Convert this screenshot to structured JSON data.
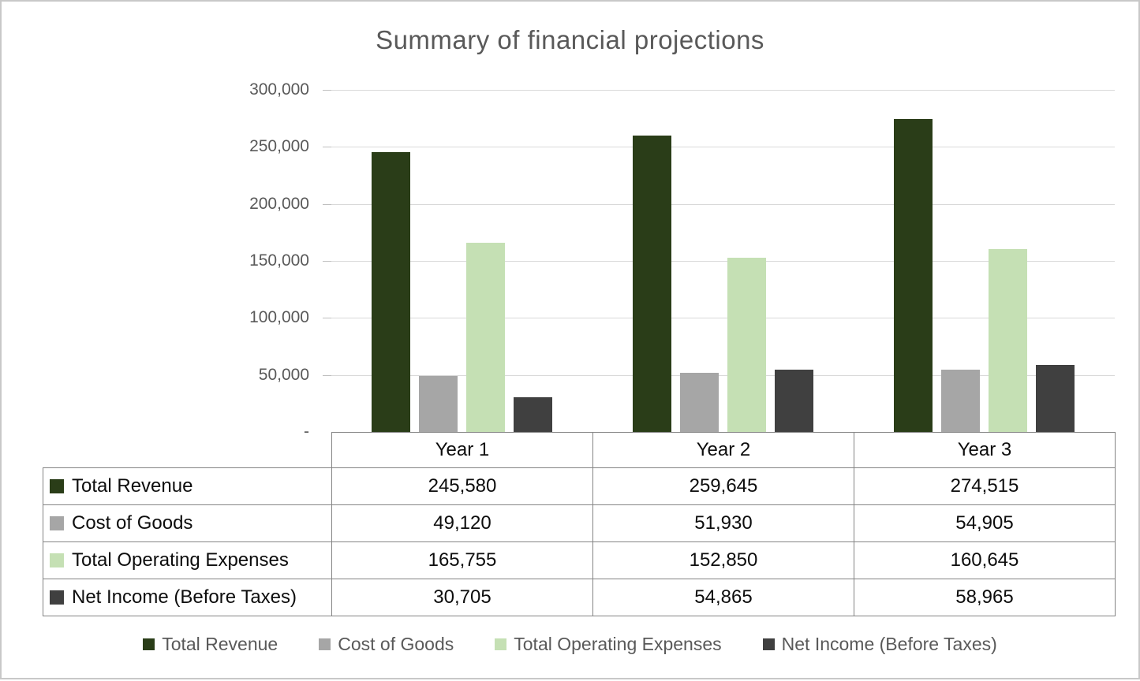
{
  "title": "Summary of financial projections",
  "colors": {
    "total_revenue": "#2a3d18",
    "cost_of_goods": "#a6a6a6",
    "total_operating_expenses": "#c5e0b4",
    "net_income": "#404040",
    "title_text": "#595959",
    "axis_text": "#595959",
    "gridline": "#d9d9d9",
    "table_border": "#848484"
  },
  "y_axis": {
    "tick_labels": [
      "300,000",
      "250,000",
      "200,000",
      "150,000",
      "100,000",
      "50,000",
      "-"
    ]
  },
  "chart_data": {
    "type": "bar",
    "title": "Summary of financial projections",
    "categories": [
      "Year 1",
      "Year 2",
      "Year 3"
    ],
    "series": [
      {
        "name": "Total Revenue",
        "color": "#2a3d18",
        "values": [
          245580,
          259645,
          274515
        ],
        "values_fmt": [
          "245,580",
          "259,645",
          "274,515"
        ]
      },
      {
        "name": "Cost of Goods",
        "color": "#a6a6a6",
        "values": [
          49120,
          51930,
          54905
        ],
        "values_fmt": [
          "49,120",
          "51,930",
          "54,905"
        ]
      },
      {
        "name": "Total Operating Expenses",
        "color": "#c5e0b4",
        "values": [
          165755,
          152850,
          160645
        ],
        "values_fmt": [
          "165,755",
          "152,850",
          "160,645"
        ]
      },
      {
        "name": "Net Income (Before Taxes)",
        "color": "#404040",
        "values": [
          30705,
          54865,
          58965
        ],
        "values_fmt": [
          "30,705",
          "54,865",
          "58,965"
        ]
      }
    ],
    "xlabel": "",
    "ylabel": "",
    "ylim": [
      0,
      300000
    ],
    "ytick_step": 50000,
    "ytick_labels_top_to_bottom": [
      "300,000",
      "250,000",
      "200,000",
      "150,000",
      "100,000",
      "50,000",
      "-"
    ],
    "grid": true,
    "legend_position": "bottom",
    "data_table_shown": true
  },
  "table": {
    "year_headers": [
      "Year 1",
      "Year 2",
      "Year 3"
    ]
  },
  "legend": {
    "items": [
      "Total Revenue",
      "Cost of Goods",
      "Total Operating Expenses",
      "Net Income (Before Taxes)"
    ]
  }
}
